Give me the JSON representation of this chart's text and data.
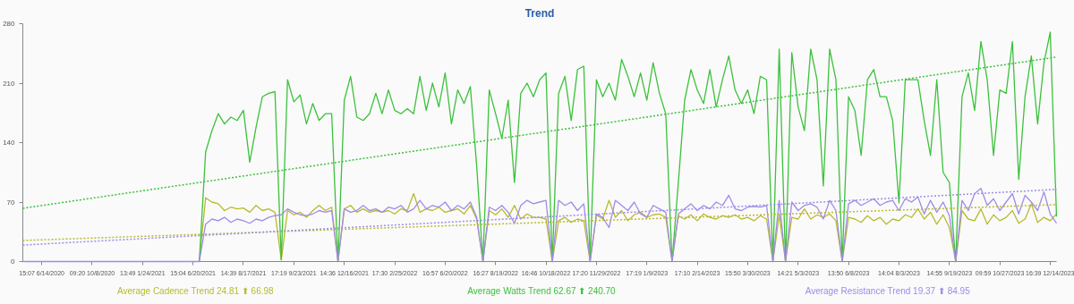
{
  "chart_data": {
    "type": "line",
    "title": "Trend",
    "categories": [
      null,
      null,
      null,
      "15:07 6/14/2020",
      null,
      null,
      null,
      null,
      null,
      null,
      null,
      "09:20 10/8/2020",
      null,
      null,
      null,
      null,
      null,
      null,
      null,
      "13:49 1/24/2021",
      null,
      null,
      null,
      null,
      null,
      null,
      null,
      "15:04 6/20/2021",
      null,
      null,
      null,
      null,
      null,
      null,
      null,
      "14:39 8/17/2021",
      null,
      null,
      null,
      null,
      null,
      null,
      null,
      "17:19 9/23/2021",
      null,
      null,
      null,
      null,
      null,
      null,
      null,
      "14:36 12/16/2021",
      null,
      null,
      null,
      null,
      null,
      null,
      null,
      "17:30 2/25/2022",
      null,
      null,
      null,
      null,
      null,
      null,
      null,
      "16:57 6/20/2022",
      null,
      null,
      null,
      null,
      null,
      null,
      null,
      "16:27 8/19/2022",
      null,
      null,
      null,
      null,
      null,
      null,
      null,
      "16:46 10/18/2022",
      null,
      null,
      null,
      null,
      null,
      null,
      null,
      "17:20 11/29/2022",
      null,
      null,
      null,
      null,
      null,
      null,
      null,
      "17:19 1/9/2023",
      null,
      null,
      null,
      null,
      null,
      null,
      null,
      "17:10 2/14/2023",
      null,
      null,
      null,
      null,
      null,
      null,
      null,
      "15:50 3/30/2023",
      null,
      null,
      null,
      null,
      null,
      null,
      null,
      "14:21 5/3/2023",
      null,
      null,
      null,
      null,
      null,
      null,
      null,
      "13:50 6/8/2023",
      null,
      null,
      null,
      null,
      null,
      null,
      null,
      "14:04 8/3/2023",
      null,
      null,
      null,
      null,
      null,
      null,
      null,
      "14:55 9/19/2023",
      null,
      null,
      null,
      null,
      null,
      null,
      null,
      "09:59 10/27/2023",
      null,
      null,
      null,
      null,
      null,
      null,
      null,
      "16:39 12/14/2023",
      null
    ],
    "series": [
      {
        "color": "#b8ba2e",
        "values": [
          null,
          null,
          null,
          null,
          null,
          null,
          null,
          null,
          null,
          null,
          null,
          null,
          null,
          null,
          null,
          null,
          null,
          null,
          null,
          null,
          null,
          null,
          null,
          null,
          null,
          null,
          null,
          null,
          0,
          75,
          70,
          68,
          60,
          64,
          62,
          63,
          58,
          66,
          60,
          62,
          58,
          2,
          60,
          55,
          58,
          52,
          60,
          66,
          60,
          64,
          0,
          62,
          66,
          58,
          62,
          58,
          60,
          58,
          60,
          56,
          62,
          60,
          80,
          58,
          62,
          60,
          64,
          58,
          60,
          62,
          56,
          66,
          50,
          0,
          60,
          55,
          62,
          52,
          66,
          50,
          56,
          52,
          52,
          50,
          0,
          48,
          52,
          46,
          50,
          48,
          0,
          55,
          50,
          72,
          52,
          60,
          48,
          55,
          58,
          52,
          55,
          56,
          52,
          0,
          54,
          50,
          55,
          48,
          56,
          52,
          50,
          54,
          52,
          55,
          50,
          52,
          48,
          54,
          50,
          0,
          55,
          0,
          52,
          50,
          62,
          50,
          55,
          52,
          56,
          48,
          0,
          52,
          50,
          46,
          54,
          48,
          52,
          44,
          50,
          48,
          55,
          52,
          62,
          50,
          58,
          44,
          55,
          40,
          0,
          60,
          50,
          48,
          62,
          44,
          55,
          48,
          52,
          60,
          45,
          50,
          68,
          46,
          52,
          48,
          56
        ]
      },
      {
        "color": "#3cc13c",
        "values": [
          null,
          null,
          null,
          null,
          null,
          null,
          null,
          null,
          null,
          null,
          null,
          null,
          null,
          null,
          null,
          null,
          null,
          null,
          null,
          null,
          null,
          null,
          null,
          null,
          null,
          null,
          null,
          null,
          0,
          129,
          154,
          174,
          162,
          170,
          166,
          178,
          117,
          158,
          194,
          198,
          200,
          2,
          214,
          188,
          196,
          162,
          186,
          166,
          174,
          174,
          0,
          190,
          218,
          170,
          166,
          174,
          198,
          174,
          202,
          178,
          174,
          180,
          174,
          218,
          178,
          210,
          182,
          222,
          162,
          202,
          186,
          206,
          113,
          0,
          202,
          174,
          145,
          190,
          93,
          198,
          210,
          194,
          214,
          222,
          0,
          198,
          218,
          166,
          226,
          230,
          0,
          214,
          194,
          210,
          190,
          238,
          218,
          194,
          222,
          190,
          234,
          198,
          174,
          0,
          93,
          190,
          226,
          202,
          186,
          226,
          182,
          214,
          242,
          202,
          186,
          202,
          174,
          218,
          214,
          0,
          250,
          0,
          246,
          182,
          154,
          250,
          214,
          89,
          250,
          214,
          0,
          194,
          178,
          125,
          214,
          226,
          194,
          194,
          166,
          69,
          214,
          214,
          214,
          166,
          125,
          214,
          105,
          93,
          0,
          194,
          222,
          178,
          259,
          214,
          125,
          202,
          198,
          259,
          97,
          194,
          242,
          162,
          234,
          270,
          53
        ]
      },
      {
        "color": "#a08be8",
        "values": [
          0,
          0,
          0,
          0,
          0,
          0,
          0,
          0,
          0,
          0,
          0,
          0,
          0,
          0,
          0,
          0,
          0,
          0,
          0,
          0,
          0,
          0,
          0,
          0,
          0,
          0,
          0,
          0,
          0,
          44,
          50,
          48,
          52,
          46,
          50,
          48,
          45,
          50,
          48,
          52,
          54,
          55,
          62,
          58,
          55,
          54,
          56,
          60,
          58,
          60,
          0,
          62,
          58,
          60,
          66,
          60,
          62,
          58,
          64,
          62,
          66,
          58,
          62,
          72,
          62,
          66,
          64,
          70,
          60,
          66,
          62,
          70,
          52,
          0,
          64,
          60,
          66,
          58,
          45,
          66,
          72,
          68,
          70,
          72,
          0,
          72,
          66,
          70,
          60,
          68,
          0,
          56,
          52,
          40,
          72,
          66,
          60,
          70,
          56,
          52,
          66,
          62,
          58,
          0,
          56,
          62,
          68,
          60,
          66,
          62,
          70,
          66,
          78,
          62,
          60,
          64,
          65,
          64,
          66,
          0,
          72,
          0,
          70,
          60,
          66,
          68,
          64,
          50,
          72,
          60,
          0,
          68,
          72,
          66,
          70,
          74,
          66,
          70,
          72,
          60,
          74,
          70,
          76,
          56,
          72,
          58,
          70,
          54,
          0,
          72,
          60,
          80,
          86,
          66,
          74,
          60,
          70,
          80,
          56,
          78,
          70,
          60,
          82,
          56,
          45
        ]
      },
      {
        "name": "Average Cadence Trend 24.81 ⬆ 66.98",
        "color": "#b8ba2e",
        "line_style": "dotted",
        "values": [
          24.81,
          null,
          null,
          null,
          null,
          null,
          null,
          null,
          null,
          null,
          null,
          null,
          null,
          null,
          null,
          null,
          null,
          null,
          null,
          null,
          null,
          null,
          null,
          null,
          null,
          null,
          null,
          null,
          null,
          null,
          null,
          null,
          null,
          null,
          null,
          null,
          null,
          null,
          null,
          null,
          null,
          null,
          null,
          null,
          null,
          null,
          null,
          null,
          null,
          null,
          null,
          null,
          null,
          null,
          null,
          null,
          null,
          null,
          null,
          null,
          null,
          null,
          null,
          null,
          null,
          null,
          null,
          null,
          null,
          null,
          null,
          null,
          null,
          null,
          null,
          null,
          null,
          null,
          null,
          null,
          null,
          null,
          null,
          null,
          null,
          null,
          null,
          null,
          null,
          null,
          null,
          null,
          null,
          null,
          null,
          null,
          null,
          null,
          null,
          null,
          null,
          null,
          null,
          null,
          null,
          null,
          null,
          null,
          null,
          null,
          null,
          null,
          null,
          null,
          null,
          null,
          null,
          null,
          null,
          null,
          null,
          null,
          null,
          null,
          null,
          null,
          null,
          null,
          null,
          null,
          null,
          null,
          null,
          null,
          null,
          null,
          null,
          null,
          null,
          null,
          null,
          null,
          null,
          null,
          null,
          null,
          null,
          null,
          null,
          null,
          null,
          null,
          null,
          null,
          null,
          null,
          null,
          null,
          null,
          null,
          null,
          null,
          null,
          null,
          66.98
        ]
      },
      {
        "name": "Average Watts Trend 62.67 ⬆ 240.70",
        "color": "#3cc13c",
        "line_style": "dotted",
        "values": [
          62.67,
          null,
          null,
          null,
          null,
          null,
          null,
          null,
          null,
          null,
          null,
          null,
          null,
          null,
          null,
          null,
          null,
          null,
          null,
          null,
          null,
          null,
          null,
          null,
          null,
          null,
          null,
          null,
          null,
          null,
          null,
          null,
          null,
          null,
          null,
          null,
          null,
          null,
          null,
          null,
          null,
          null,
          null,
          null,
          null,
          null,
          null,
          null,
          null,
          null,
          null,
          null,
          null,
          null,
          null,
          null,
          null,
          null,
          null,
          null,
          null,
          null,
          null,
          null,
          null,
          null,
          null,
          null,
          null,
          null,
          null,
          null,
          null,
          null,
          null,
          null,
          null,
          null,
          null,
          null,
          null,
          null,
          null,
          null,
          null,
          null,
          null,
          null,
          null,
          null,
          null,
          null,
          null,
          null,
          null,
          null,
          null,
          null,
          null,
          null,
          null,
          null,
          null,
          null,
          null,
          null,
          null,
          null,
          null,
          null,
          null,
          null,
          null,
          null,
          null,
          null,
          null,
          null,
          null,
          null,
          null,
          null,
          null,
          null,
          null,
          null,
          null,
          null,
          null,
          null,
          null,
          null,
          null,
          null,
          null,
          null,
          null,
          null,
          null,
          null,
          null,
          null,
          null,
          null,
          null,
          null,
          null,
          null,
          null,
          null,
          null,
          null,
          null,
          null,
          null,
          null,
          null,
          null,
          null,
          null,
          null,
          null,
          null,
          null,
          240.7
        ]
      },
      {
        "name": "Average Resistance Trend 19.37 ⬆ 84.95",
        "color": "#a08be8",
        "line_style": "dotted",
        "values": [
          19.37,
          null,
          null,
          null,
          null,
          null,
          null,
          null,
          null,
          null,
          null,
          null,
          null,
          null,
          null,
          null,
          null,
          null,
          null,
          null,
          null,
          null,
          null,
          null,
          null,
          null,
          null,
          null,
          null,
          null,
          null,
          null,
          null,
          null,
          null,
          null,
          null,
          null,
          null,
          null,
          null,
          null,
          null,
          null,
          null,
          null,
          null,
          null,
          null,
          null,
          null,
          null,
          null,
          null,
          null,
          null,
          null,
          null,
          null,
          null,
          null,
          null,
          null,
          null,
          null,
          null,
          null,
          null,
          null,
          null,
          null,
          null,
          null,
          null,
          null,
          null,
          null,
          null,
          null,
          null,
          null,
          null,
          null,
          null,
          null,
          null,
          null,
          null,
          null,
          null,
          null,
          null,
          null,
          null,
          null,
          null,
          null,
          null,
          null,
          null,
          null,
          null,
          null,
          null,
          null,
          null,
          null,
          null,
          null,
          null,
          null,
          null,
          null,
          null,
          null,
          null,
          null,
          null,
          null,
          null,
          null,
          null,
          null,
          null,
          null,
          null,
          null,
          null,
          null,
          null,
          null,
          null,
          null,
          null,
          null,
          null,
          null,
          null,
          null,
          null,
          null,
          null,
          null,
          null,
          null,
          null,
          null,
          null,
          null,
          null,
          null,
          null,
          null,
          null,
          null,
          null,
          null,
          null,
          null,
          null,
          null,
          null,
          null,
          null,
          84.95
        ]
      }
    ],
    "ylim": [
      0,
      280
    ],
    "yticks": [
      0,
      70,
      140,
      210,
      280
    ],
    "grid": false,
    "legend": "bottom",
    "line_style": "solid",
    "marker": "none"
  }
}
